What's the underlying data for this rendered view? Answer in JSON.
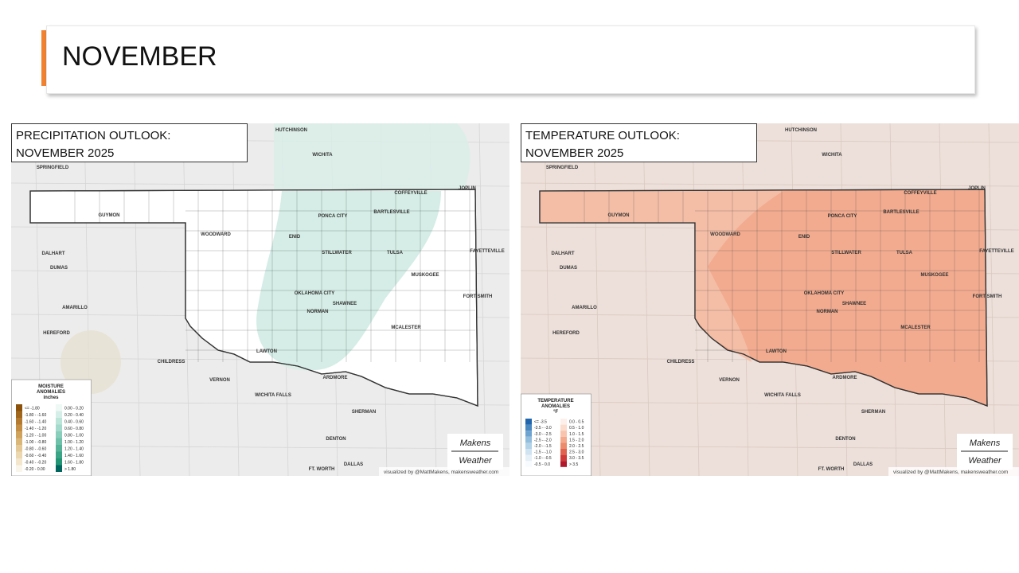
{
  "header": {
    "title": "NOVEMBER"
  },
  "cities": [
    "HUTCHINSON",
    "WICHITA",
    "SPRINGFIELD",
    "JOPLIN",
    "COFFEYVILLE",
    "GUYMON",
    "PONCA CITY",
    "BARTLESVILLE",
    "WOODWARD",
    "ENID",
    "DALHART",
    "FAYETTEVILLE",
    "STILLWATER",
    "TULSA",
    "DUMAS",
    "MUSKOGEE",
    "OKLAHOMA CITY",
    "FORT SMITH",
    "SHAWNEE",
    "AMARILLO",
    "NORMAN",
    "MCALESTER",
    "HEREFORD",
    "LAWTON",
    "CHILDRESS",
    "VERNON",
    "ARDMORE",
    "WICHITA FALLS",
    "SHERMAN",
    "DENTON",
    "DALLAS",
    "FT. WORTH"
  ],
  "maps": [
    {
      "title": [
        "PRECIPITATION OUTLOOK:",
        "NOVEMBER 2025"
      ],
      "legend": {
        "title": [
          "MOISTURE",
          "ANOMALIES",
          "inches"
        ],
        "items": [
          {
            "label": "<= -1.80",
            "color": "#8c510a"
          },
          {
            "label": "-1.80 - -1.60",
            "color": "#a0661c"
          },
          {
            "label": "-1.60 - -1.40",
            "color": "#b47b30"
          },
          {
            "label": "-1.40 - -1.20",
            "color": "#c48f45"
          },
          {
            "label": "-1.20 - -1.00",
            "color": "#d0a35d"
          },
          {
            "label": "-1.00 - -0.80",
            "color": "#dbb679"
          },
          {
            "label": "-0.80 - -0.60",
            "color": "#e4c895"
          },
          {
            "label": "-0.60 - -0.40",
            "color": "#ecd8b0"
          },
          {
            "label": "-0.40 - -0.20",
            "color": "#f3e6cc"
          },
          {
            "label": "-0.20 - 0.00",
            "color": "#faf5ea"
          },
          {
            "label": "0.00 - 0.20",
            "color": "#eef8f5"
          },
          {
            "label": "0.20 - 0.40",
            "color": "#d5efe8"
          },
          {
            "label": "0.40 - 0.60",
            "color": "#bce5da"
          },
          {
            "label": "0.60 - 0.80",
            "color": "#a3dacb"
          },
          {
            "label": "0.80 - 1.00",
            "color": "#89cebb"
          },
          {
            "label": "1.00 - 1.20",
            "color": "#6fc1aa"
          },
          {
            "label": "1.20 - 1.40",
            "color": "#55b398"
          },
          {
            "label": "1.40 - 1.60",
            "color": "#3ba486"
          },
          {
            "label": "1.60 - 1.80",
            "color": "#219574"
          },
          {
            "label": "> 1.80",
            "color": "#01665e"
          }
        ]
      },
      "logo": [
        "Makens",
        "Weather"
      ],
      "credit": "visualized by @MattMakens, makensweather.com"
    },
    {
      "title": [
        "TEMPERATURE OUTLOOK:",
        "NOVEMBER 2025"
      ],
      "legend": {
        "title": [
          "TEMPERATURE",
          "ANOMALIES",
          "°F"
        ],
        "items": [
          {
            "label": "<= -3.5",
            "color": "#2166ac"
          },
          {
            "label": "-3.5 - -3.0",
            "color": "#4a88c0"
          },
          {
            "label": "-3.0 - -2.5",
            "color": "#6fa3cf"
          },
          {
            "label": "-2.5 - -2.0",
            "color": "#92bddd"
          },
          {
            "label": "-2.0 - -1.5",
            "color": "#b2d2e8"
          },
          {
            "label": "-1.5 - -1.0",
            "color": "#cfe3f0"
          },
          {
            "label": "-1.0 - -0.5",
            "color": "#e6f0f7"
          },
          {
            "label": "-0.5 - 0.0",
            "color": "#f7fbfd"
          },
          {
            "label": "0.0 - 0.5",
            "color": "#fdf0ea"
          },
          {
            "label": "0.5 - 1.0",
            "color": "#fbdccd"
          },
          {
            "label": "1.0 - 1.5",
            "color": "#f8c4ad"
          },
          {
            "label": "1.5 - 2.0",
            "color": "#f4a98c"
          },
          {
            "label": "2.0 - 2.5",
            "color": "#ec8a6c"
          },
          {
            "label": "2.5 - 3.0",
            "color": "#e0634f"
          },
          {
            "label": "3.0 - 3.5",
            "color": "#d03a36"
          },
          {
            "label": "> 3.5",
            "color": "#b2182b"
          }
        ]
      },
      "logo": [
        "Makens",
        "Weather"
      ],
      "credit": "visualized by @MattMakens, makensweather.com"
    }
  ]
}
